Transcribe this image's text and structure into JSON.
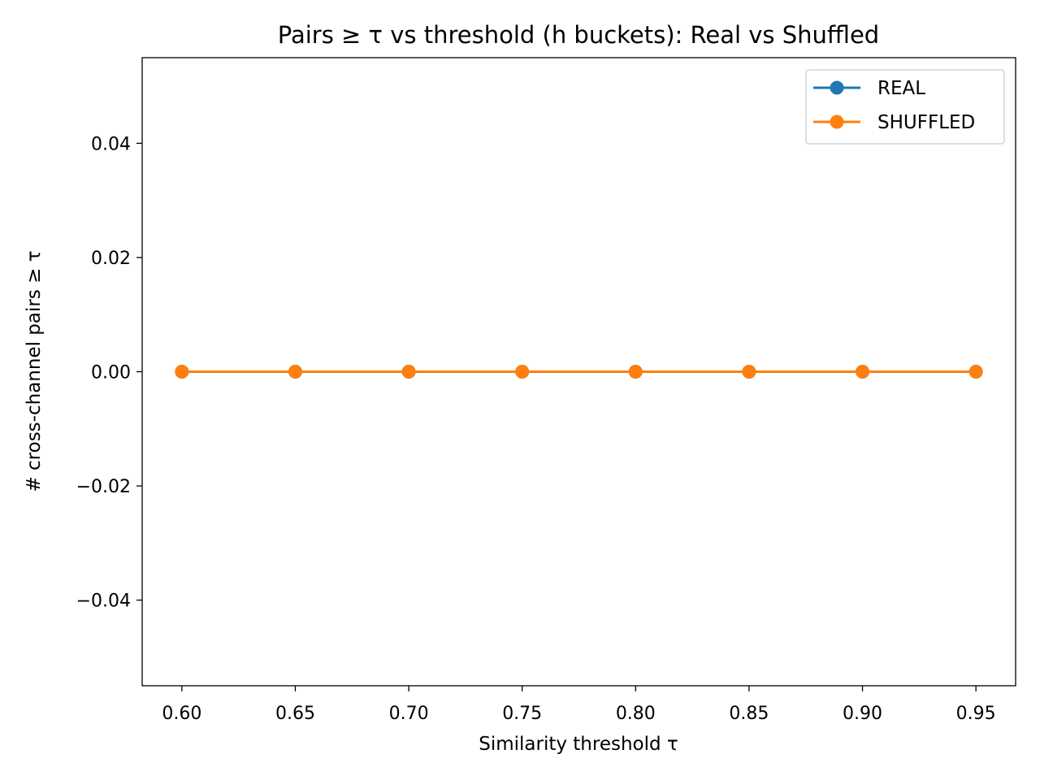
{
  "chart_data": {
    "type": "line",
    "title": "Pairs ≥ τ vs threshold (h buckets): Real vs Shuffled",
    "xlabel": "Similarity threshold τ",
    "ylabel": "# cross-channel pairs ≥ τ",
    "x": [
      0.6,
      0.65,
      0.7,
      0.75,
      0.8,
      0.85,
      0.9,
      0.95
    ],
    "xlim": [
      0.5825,
      0.9675
    ],
    "ylim": [
      -0.055,
      0.055
    ],
    "xticks": [
      0.6,
      0.65,
      0.7,
      0.75,
      0.8,
      0.85,
      0.9,
      0.95
    ],
    "xtick_labels": [
      "0.60",
      "0.65",
      "0.70",
      "0.75",
      "0.80",
      "0.85",
      "0.90",
      "0.95"
    ],
    "yticks": [
      -0.04,
      -0.02,
      0.0,
      0.02,
      0.04
    ],
    "ytick_labels": [
      "−0.04",
      "−0.02",
      "0.00",
      "0.02",
      "0.04"
    ],
    "grid": false,
    "legend_position": "top-right",
    "series": [
      {
        "name": "REAL",
        "color": "#1f77b4",
        "marker": "circle",
        "values": [
          0,
          0,
          0,
          0,
          0,
          0,
          0,
          0
        ]
      },
      {
        "name": "SHUFFLED",
        "color": "#ff7f0e",
        "marker": "circle",
        "values": [
          0,
          0,
          0,
          0,
          0,
          0,
          0,
          0
        ]
      }
    ]
  }
}
